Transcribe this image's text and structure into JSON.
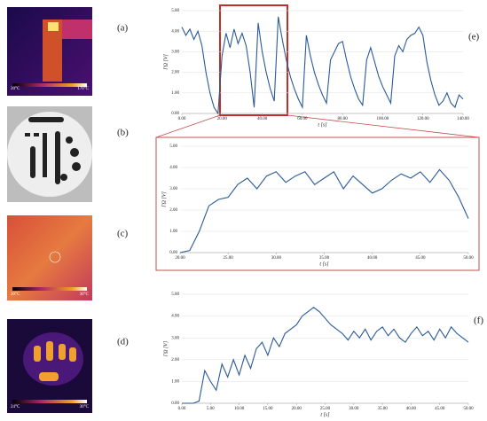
{
  "images": [
    {
      "label": "(a)",
      "scale_min": "20°C",
      "scale_max": "170°C"
    },
    {
      "label": "(b)"
    },
    {
      "label": "(c)",
      "scale_min": "20°C",
      "scale_max": "30°C"
    },
    {
      "label": "(d)",
      "scale_min": "24°C",
      "scale_max": "30°C"
    }
  ],
  "chart_data": [
    {
      "type": "line",
      "label": "(e)",
      "ylabel": "ΓΩ [V]",
      "xlabel": "t [s]",
      "color": "#2a5a97",
      "grid": true,
      "x": [
        0,
        2,
        4,
        6,
        8,
        10,
        12,
        14,
        16,
        18,
        20,
        22,
        24,
        26,
        28,
        30,
        32,
        34,
        36,
        38,
        40,
        42,
        44,
        46,
        48,
        50,
        52,
        54,
        56,
        58,
        60,
        62,
        64,
        66,
        68,
        70,
        72,
        74,
        76,
        78,
        80,
        82,
        84,
        86,
        88,
        90,
        92,
        94,
        96,
        98,
        100,
        102,
        104,
        106,
        108,
        110,
        112,
        114,
        116,
        118,
        120,
        122,
        124,
        126,
        128,
        130,
        132,
        134,
        136,
        138,
        140
      ],
      "values": [
        4.2,
        3.8,
        4.1,
        3.6,
        4.0,
        3.3,
        2.0,
        1.0,
        0.3,
        0.0,
        2.8,
        3.9,
        3.2,
        4.1,
        3.4,
        3.9,
        3.3,
        2.0,
        0.3,
        4.4,
        3.0,
        2.0,
        1.2,
        0.6,
        4.7,
        3.6,
        2.6,
        1.8,
        1.2,
        0.7,
        0.3,
        3.8,
        2.8,
        2.0,
        1.4,
        0.9,
        0.5,
        2.6,
        3.0,
        3.4,
        3.5,
        2.6,
        1.8,
        1.2,
        0.7,
        0.4,
        2.6,
        3.2,
        2.5,
        1.8,
        1.3,
        0.9,
        0.5,
        2.8,
        3.3,
        3.0,
        3.6,
        3.8,
        3.9,
        4.2,
        3.8,
        2.5,
        1.6,
        0.9,
        0.4,
        0.6,
        1.0,
        0.5,
        0.3,
        0.9,
        0.7
      ],
      "xlim": [
        0,
        140
      ],
      "xticks": [
        {
          "value": 0,
          "label": "0.00"
        },
        {
          "value": 20,
          "label": "20.00"
        },
        {
          "value": 40,
          "label": "40.00"
        },
        {
          "value": 60,
          "label": "60.00"
        },
        {
          "value": 80,
          "label": "80.00"
        },
        {
          "value": 100,
          "label": "100.00"
        },
        {
          "value": 120,
          "label": "120.00"
        },
        {
          "value": 140,
          "label": "140.00"
        }
      ],
      "ylim": [
        0,
        5
      ],
      "yticks": [
        {
          "value": 0,
          "label": "0.00"
        },
        {
          "value": 1,
          "label": "1.00"
        },
        {
          "value": 2,
          "label": "2.00"
        },
        {
          "value": 3,
          "label": "3.00"
        },
        {
          "value": 4,
          "label": "4.00"
        },
        {
          "value": 5,
          "label": "5.00"
        }
      ]
    },
    {
      "type": "line",
      "ylabel": "ΓΩ [V]",
      "xlabel": "t [s]",
      "color": "#2a5a97",
      "grid": true,
      "x": [
        20,
        21,
        22,
        23,
        24,
        25,
        26,
        27,
        28,
        29,
        30,
        31,
        32,
        33,
        34,
        35,
        36,
        37,
        38,
        39,
        40,
        41,
        42,
        43,
        44,
        45,
        46,
        47,
        48,
        49,
        50
      ],
      "values": [
        0,
        0.1,
        1.0,
        2.2,
        2.5,
        2.6,
        3.2,
        3.5,
        3.0,
        3.6,
        3.8,
        3.3,
        3.6,
        3.8,
        3.2,
        3.5,
        3.8,
        3.0,
        3.6,
        3.2,
        2.8,
        3.0,
        3.4,
        3.7,
        3.5,
        3.8,
        3.3,
        3.9,
        3.4,
        2.6,
        1.6
      ],
      "xlim": [
        20,
        50
      ],
      "xticks": [
        {
          "value": 20,
          "label": "20.00"
        },
        {
          "value": 25,
          "label": "25.00"
        },
        {
          "value": 30,
          "label": "30.00"
        },
        {
          "value": 35,
          "label": "35.00"
        },
        {
          "value": 40,
          "label": "40.00"
        },
        {
          "value": 45,
          "label": "45.00"
        },
        {
          "value": 50,
          "label": "50.00"
        }
      ],
      "ylim": [
        0,
        5
      ],
      "yticks": [
        {
          "value": 0,
          "label": "0.00"
        },
        {
          "value": 1,
          "label": "1.00"
        },
        {
          "value": 2,
          "label": "2.00"
        },
        {
          "value": 3,
          "label": "3.00"
        },
        {
          "value": 4,
          "label": "4.00"
        },
        {
          "value": 5,
          "label": "5.00"
        }
      ]
    },
    {
      "type": "line",
      "label": "(f)",
      "ylabel": "ΓΩ [V]",
      "xlabel": "t [s]",
      "color": "#2a5a97",
      "grid": true,
      "x": [
        0,
        1,
        2,
        3,
        4,
        5,
        6,
        7,
        8,
        9,
        10,
        11,
        12,
        13,
        14,
        15,
        16,
        17,
        18,
        19,
        20,
        21,
        22,
        23,
        24,
        25,
        26,
        27,
        28,
        29,
        30,
        31,
        32,
        33,
        34,
        35,
        36,
        37,
        38,
        39,
        40,
        41,
        42,
        43,
        44,
        45,
        46,
        47,
        48,
        49,
        50
      ],
      "values": [
        0,
        0,
        0,
        0.1,
        1.5,
        1.0,
        0.6,
        1.8,
        1.2,
        2.0,
        1.3,
        2.2,
        1.6,
        2.5,
        2.8,
        2.2,
        3.0,
        2.6,
        3.2,
        3.4,
        3.6,
        4.0,
        4.2,
        4.4,
        4.2,
        3.9,
        3.6,
        3.4,
        3.2,
        2.9,
        3.3,
        3.0,
        3.4,
        2.9,
        3.3,
        3.5,
        3.1,
        3.4,
        3.0,
        2.8,
        3.2,
        3.5,
        3.1,
        3.3,
        2.9,
        3.4,
        3.0,
        3.5,
        3.2,
        3.0,
        2.8
      ],
      "xlim": [
        0,
        50
      ],
      "xticks": [
        {
          "value": 0,
          "label": "0.00"
        },
        {
          "value": 5,
          "label": "5.00"
        },
        {
          "value": 10,
          "label": "10.00"
        },
        {
          "value": 15,
          "label": "15.00"
        },
        {
          "value": 20,
          "label": "20.00"
        },
        {
          "value": 25,
          "label": "25.00"
        },
        {
          "value": 30,
          "label": "30.00"
        },
        {
          "value": 35,
          "label": "35.00"
        },
        {
          "value": 40,
          "label": "40.00"
        },
        {
          "value": 45,
          "label": "45.00"
        },
        {
          "value": 50,
          "label": "50.00"
        }
      ],
      "ylim": [
        0,
        5
      ],
      "yticks": [
        {
          "value": 0,
          "label": "0.00"
        },
        {
          "value": 1,
          "label": "1.00"
        },
        {
          "value": 2,
          "label": "2.00"
        },
        {
          "value": 3,
          "label": "3.00"
        },
        {
          "value": 4,
          "label": "4.00"
        },
        {
          "value": 5,
          "label": "5.00"
        }
      ]
    }
  ]
}
